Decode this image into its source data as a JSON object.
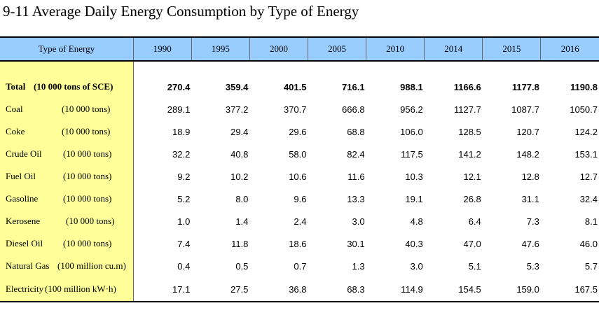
{
  "title": "9-11  Average Daily Energy Consumption by Type of Energy",
  "header": {
    "type_label": "Type of Energy",
    "years": [
      "1990",
      "1995",
      "2000",
      "2005",
      "2010",
      "2014",
      "2015",
      "2016"
    ]
  },
  "rows": [
    {
      "name": "Total",
      "unit": "(10 000 tons of SCE)",
      "unit_left": 48,
      "bold": true,
      "values": [
        "270.4",
        "359.4",
        "401.5",
        "716.1",
        "988.1",
        "1166.6",
        "1177.8",
        "1190.8"
      ]
    },
    {
      "name": "Coal",
      "unit": "(10 000 tons)",
      "unit_left": 88,
      "values": [
        "289.1",
        "377.2",
        "370.7",
        "666.8",
        "956.2",
        "1127.7",
        "1087.7",
        "1050.7"
      ]
    },
    {
      "name": "Coke",
      "unit": "(10 000 tons)",
      "unit_left": 88,
      "values": [
        "18.9",
        "29.4",
        "29.6",
        "68.8",
        "106.0",
        "128.5",
        "120.7",
        "124.2"
      ]
    },
    {
      "name": "Crude Oil",
      "unit": "(10 000 tons)",
      "unit_left": 90,
      "values": [
        "32.2",
        "40.8",
        "58.0",
        "82.4",
        "117.5",
        "141.2",
        "148.2",
        "153.1"
      ]
    },
    {
      "name": "Fuel Oil",
      "unit": "(10 000 tons)",
      "unit_left": 90,
      "values": [
        "9.2",
        "10.2",
        "10.6",
        "11.6",
        "10.3",
        "12.1",
        "12.8",
        "12.7"
      ]
    },
    {
      "name": "Gasoline",
      "unit": "(10 000 tons)",
      "unit_left": 90,
      "values": [
        "5.2",
        "8.0",
        "9.6",
        "13.3",
        "19.1",
        "26.8",
        "31.1",
        "32.4"
      ]
    },
    {
      "name": "Kerosene",
      "unit": "(10 000 tons)",
      "unit_left": 94,
      "values": [
        "1.0",
        "1.4",
        "2.4",
        "3.0",
        "4.8",
        "6.4",
        "7.3",
        "8.1"
      ]
    },
    {
      "name": "Diesel Oil",
      "unit": "(10 000 tons)",
      "unit_left": 90,
      "values": [
        "7.4",
        "11.8",
        "18.6",
        "30.1",
        "40.3",
        "47.0",
        "47.6",
        "46.0"
      ]
    },
    {
      "name": "Natural Gas",
      "unit": "(100 million cu.m)",
      "unit_left": 82,
      "values": [
        "0.4",
        "0.5",
        "0.7",
        "1.3",
        "3.0",
        "5.1",
        "5.3",
        "5.7"
      ]
    },
    {
      "name": "Electricity",
      "unit": "(100 million kW·h)",
      "unit_left": 64,
      "values": [
        "17.1",
        "27.5",
        "36.8",
        "68.3",
        "114.9",
        "154.5",
        "159.0",
        "167.5"
      ]
    }
  ]
}
